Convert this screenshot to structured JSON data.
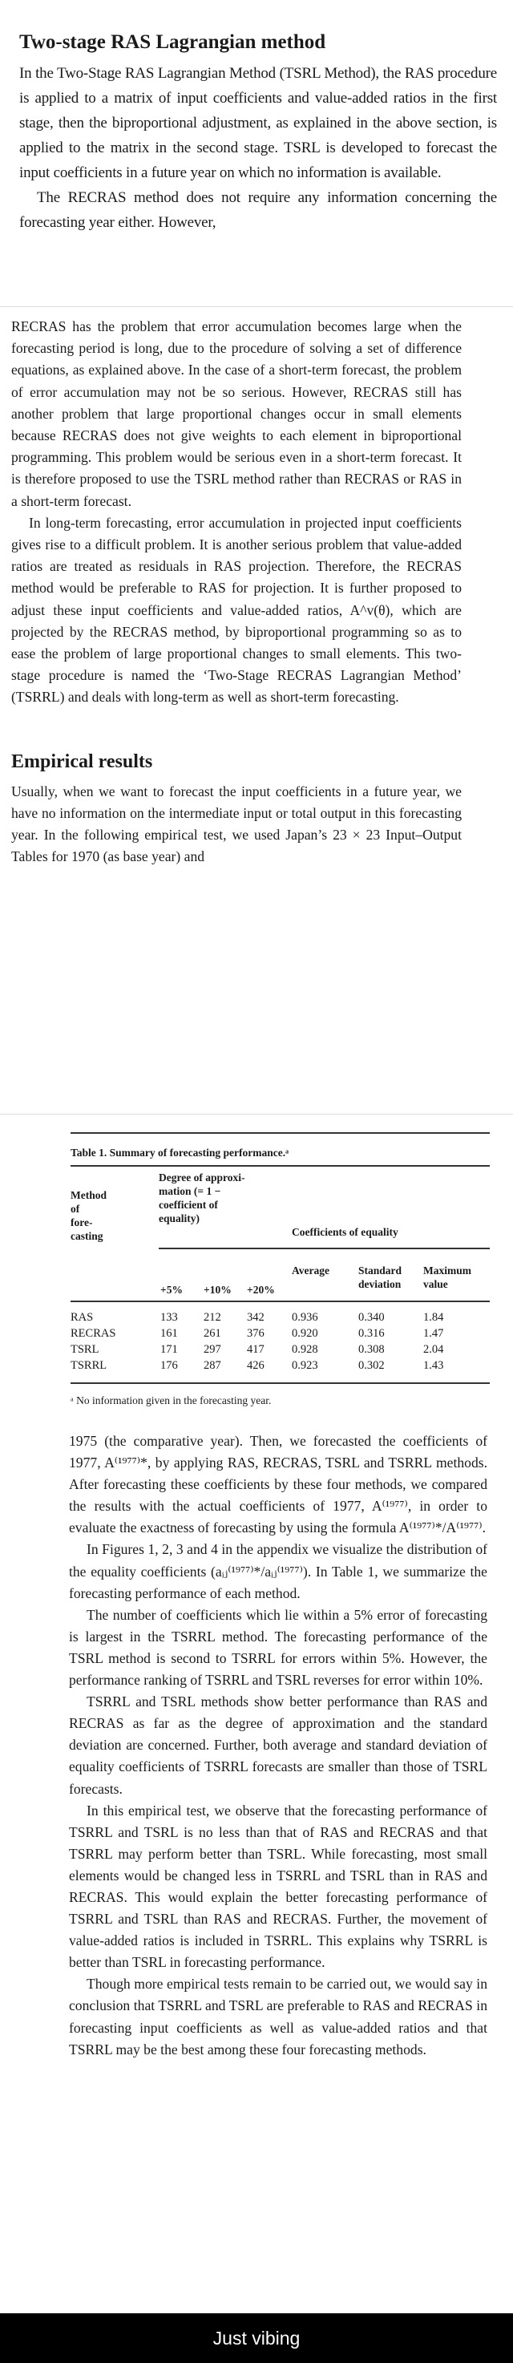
{
  "section1": {
    "title": "Two-stage RAS Lagrangian method",
    "paragraphs": [
      "In the Two-Stage RAS Lagrangian Method (TSRL Method), the RAS procedure is applied to a matrix of input coefficients and value-added ratios in the first stage, then the biproportional adjustment, as explained in the above section, is applied to the matrix in the second stage. TSRL is developed to forecast the input coefficients in a future year on which no information is available.",
      "The RECRAS method does not require any information concerning the forecasting year either. However,"
    ]
  },
  "section2": {
    "paragraphs": [
      "RECRAS has the problem that error accumulation becomes large when the forecasting period is long, due to the procedure of solving a set of difference equations, as explained above. In the case of a short-term forecast, the problem of error accumulation may not be so serious. However, RECRAS still has another problem that large proportional changes occur in small elements because RECRAS does not give weights to each element in biproportional programming. This problem would be serious even in a short-term forecast. It is therefore proposed to use the TSRL method rather than RECRAS or RAS in a short-term forecast.",
      "In long-term forecasting, error accumulation in projected input coefficients gives rise to a difficult problem. It is another serious problem that value-added ratios are treated as residuals in RAS projection. Therefore, the RECRAS method would be preferable to RAS for projection. It is further proposed to adjust these input coefficients and value-added ratios, A^v(θ), which are projected by the RECRAS method, by biproportional programming so as to ease the problem of large proportional changes to small elements. This two-stage procedure is named the ‘Two-Stage RECRAS Lagrangian Method’ (TSRRL) and deals with long-term as well as short-term forecasting."
    ],
    "heading": "Empirical results",
    "paragraph_after_heading": "Usually, when we want to forecast the input coefficients in a future year, we have no information on the intermediate input or total output in this forecasting year. In the following empirical test, we used Japan’s 23 × 23 Input–Output Tables for 1970 (as base year) and"
  },
  "table": {
    "caption": "Table 1. Summary of forecasting performance.ᵃ",
    "col_method": [
      "Method",
      "of",
      "fore-",
      "casting"
    ],
    "col_degree": [
      "Degree of approxi-",
      "mation (= 1 −",
      "coefficient of",
      "equality)"
    ],
    "col_coeff": "Coefficients of equality",
    "sub_headers": [
      "+5%",
      "+10%",
      "+20%",
      "Average",
      "Standard deviation",
      "Maximum value"
    ],
    "rows": [
      [
        "RAS",
        "133",
        "212",
        "342",
        "0.936",
        "0.340",
        "1.84"
      ],
      [
        "RECRAS",
        "161",
        "261",
        "376",
        "0.920",
        "0.316",
        "1.47"
      ],
      [
        "TSRL",
        "171",
        "297",
        "417",
        "0.928",
        "0.308",
        "2.04"
      ],
      [
        "TSRRL",
        "176",
        "287",
        "426",
        "0.923",
        "0.302",
        "1.43"
      ]
    ],
    "footnote": "ᵃ No information given in the forecasting year."
  },
  "section3": {
    "paragraphs": [
      "1975 (the comparative year). Then, we forecasted the coefficients of 1977, A⁽¹⁹⁷⁷⁾*, by applying RAS, RECRAS, TSRL and TSRRL methods. After forecasting these coefficients by these four methods, we compared the results with the actual coefficients of 1977, A⁽¹⁹⁷⁷⁾, in order to evaluate the exactness of forecasting by using the formula A⁽¹⁹⁷⁷⁾*/A⁽¹⁹⁷⁷⁾.",
      "In Figures 1, 2, 3 and 4 in the appendix we visualize the distribution of the equality coefficients (aᵢⱼ⁽¹⁹⁷⁷⁾*/aᵢⱼ⁽¹⁹⁷⁷⁾). In Table 1, we summarize the forecasting performance of each method.",
      "The number of coefficients which lie within a 5% error of forecasting is largest in the TSRRL method. The forecasting performance of the TSRL method is second to TSRRL for errors within 5%. However, the performance ranking of TSRRL and TSRL reverses for error within 10%.",
      "TSRRL and TSRL methods show better performance than RAS and RECRAS as far as the degree of approximation and the standard deviation are concerned. Further, both average and standard deviation of equality coefficients of TSRRL forecasts are smaller than those of TSRL forecasts.",
      "In this empirical test, we observe that the forecasting performance of TSRRL and TSRL is no less than that of RAS and RECRAS and that TSRRL may perform better than TSRL. While forecasting, most small elements would be changed less in TSRRL and TSRL than in RAS and RECRAS. This would explain the better forecasting performance of TSRRL and TSRL than RAS and RECRAS. Further, the movement of value-added ratios is included in TSRRL. This explains why TSRRL is better than TSRL in forecasting performance.",
      "Though more empirical tests remain to be carried out, we would say in conclusion that TSRRL and TSRL are preferable to RAS and RECRAS in forecasting input coefficients as well as value-added ratios and that TSRRL may be the best among these four forecasting methods."
    ]
  },
  "caption": "Just vibing"
}
